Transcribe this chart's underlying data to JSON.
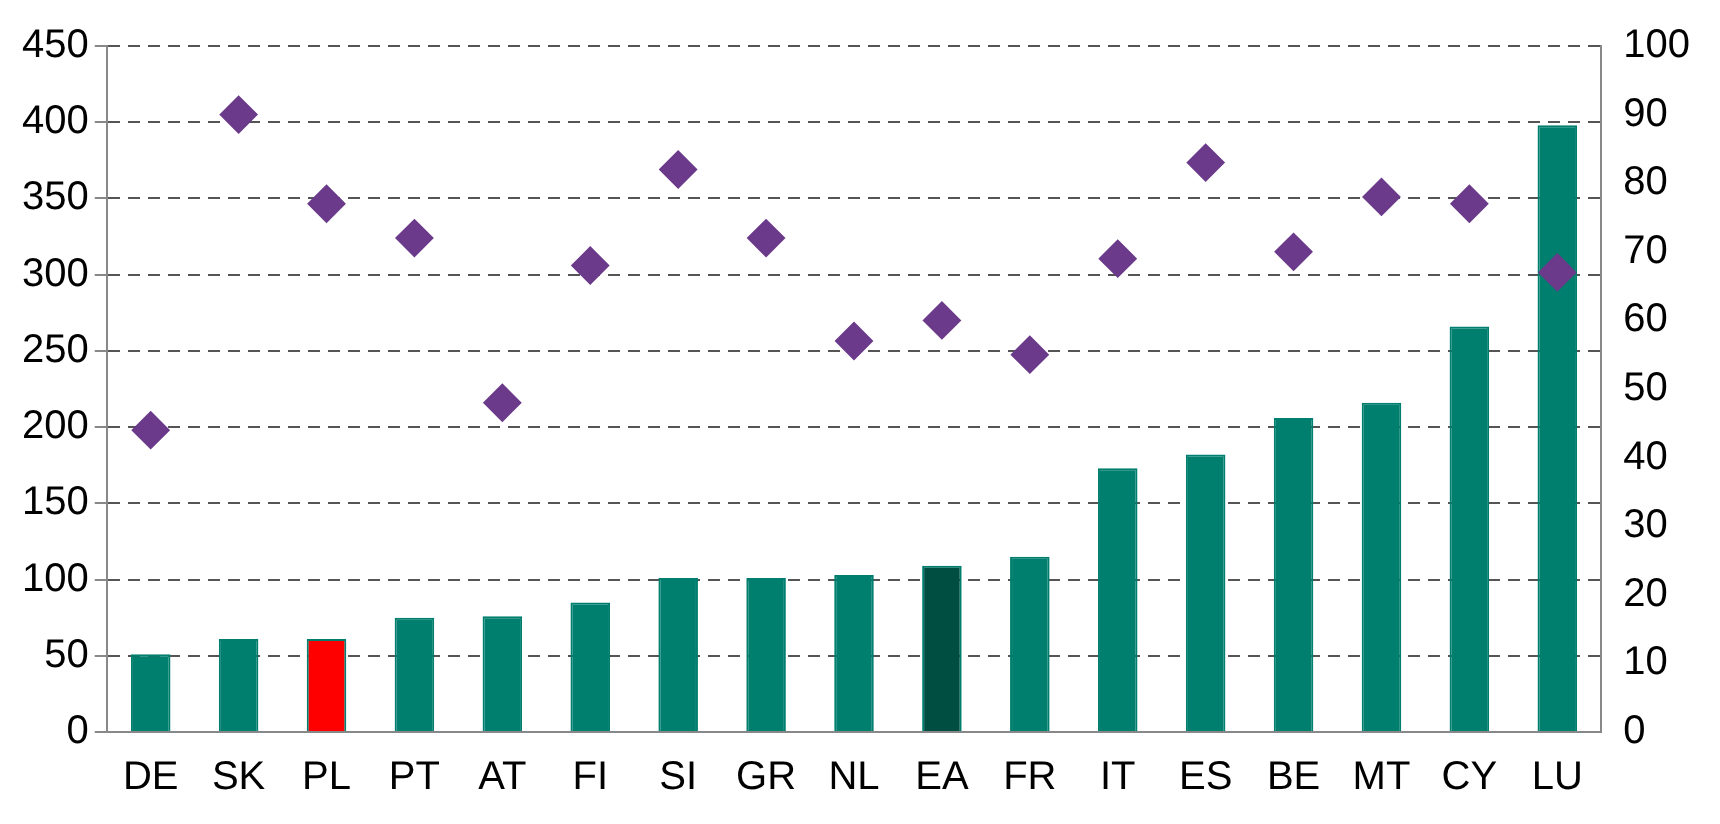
{
  "chart_data": {
    "type": "bar",
    "categories": [
      "DE",
      "SK",
      "PL",
      "PT",
      "AT",
      "FI",
      "SI",
      "GR",
      "NL",
      "EA",
      "FR",
      "IT",
      "ES",
      "BE",
      "MT",
      "CY",
      "LU"
    ],
    "series": [
      {
        "color": "#007f6e",
        "colors": [
          "#007f6e",
          "#007f6e",
          "#ff0000",
          "#007f6e",
          "#007f6e",
          "#007f6e",
          "#007f6e",
          "#007f6e",
          "#007f6e",
          "#004d42",
          "#007f6e",
          "#007f6e",
          "#007f6e",
          "#007f6e",
          "#007f6e",
          "#007f6e",
          "#007f6e"
        ],
        "values": [
          51,
          61,
          61,
          75,
          76,
          85,
          101,
          101,
          103,
          109,
          115,
          173,
          182,
          206,
          216,
          266,
          398
        ]
      },
      {
        "type": "scatter",
        "axis": "y2",
        "color": "#6b3a8a",
        "marker": "diamond",
        "values": [
          44,
          90,
          77,
          72,
          48,
          68,
          82,
          72,
          57,
          60,
          55,
          69,
          83,
          70,
          78,
          77,
          67
        ]
      }
    ],
    "ylim": [
      0,
      450
    ],
    "yticks": [
      0,
      50,
      100,
      150,
      200,
      250,
      300,
      350,
      400,
      450
    ],
    "y2lim": [
      0,
      100
    ],
    "y2ticks": [
      0,
      10,
      20,
      30,
      40,
      50,
      60,
      70,
      80,
      90,
      100
    ],
    "grid": "y",
    "legend": false
  }
}
